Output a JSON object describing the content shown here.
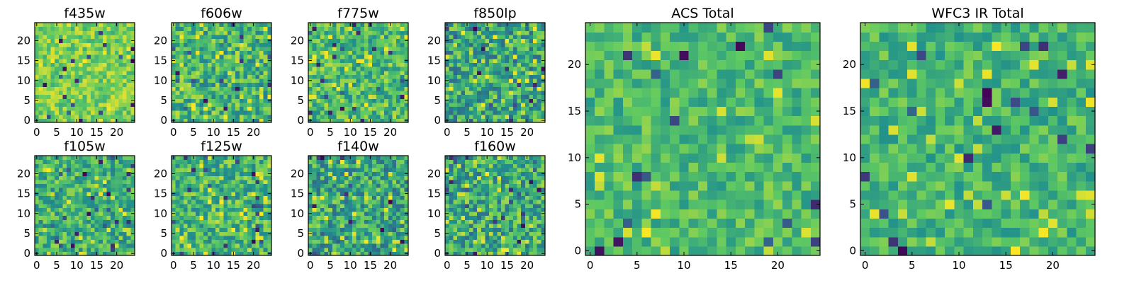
{
  "figure": {
    "colormap": "viridis",
    "colormap_stops": [
      "#440154",
      "#3b528b",
      "#21918c",
      "#5ec962",
      "#fde725"
    ]
  },
  "chart_data": [
    {
      "type": "heatmap",
      "title": "f435w",
      "size": 25,
      "xlim": [
        -0.5,
        24.5
      ],
      "ylim": [
        -0.5,
        24.5
      ],
      "xticks": [
        0,
        5,
        10,
        15,
        20
      ],
      "yticks": [
        0,
        5,
        10,
        15,
        20
      ],
      "origin": "lower",
      "mean_level": 0.78,
      "spread": 0.16,
      "seed": 11
    },
    {
      "type": "heatmap",
      "title": "f606w",
      "size": 25,
      "xlim": [
        -0.5,
        24.5
      ],
      "ylim": [
        -0.5,
        24.5
      ],
      "xticks": [
        0,
        5,
        10,
        15,
        20
      ],
      "yticks": [
        0,
        5,
        10,
        15,
        20
      ],
      "origin": "lower",
      "mean_level": 0.66,
      "spread": 0.24,
      "seed": 23
    },
    {
      "type": "heatmap",
      "title": "f775w",
      "size": 25,
      "xlim": [
        -0.5,
        24.5
      ],
      "ylim": [
        -0.5,
        24.5
      ],
      "xticks": [
        0,
        5,
        10,
        15,
        20
      ],
      "yticks": [
        0,
        5,
        10,
        15,
        20
      ],
      "origin": "lower",
      "mean_level": 0.68,
      "spread": 0.22,
      "seed": 37
    },
    {
      "type": "heatmap",
      "title": "f850lp",
      "size": 25,
      "xlim": [
        -0.5,
        24.5
      ],
      "ylim": [
        -0.5,
        24.5
      ],
      "xticks": [
        0,
        5,
        10,
        15,
        20
      ],
      "yticks": [
        0,
        5,
        10,
        15,
        20
      ],
      "origin": "lower",
      "mean_level": 0.6,
      "spread": 0.26,
      "seed": 41
    },
    {
      "type": "heatmap",
      "title": "f105w",
      "size": 25,
      "xlim": [
        -0.5,
        24.5
      ],
      "ylim": [
        -0.5,
        24.5
      ],
      "xticks": [
        0,
        5,
        10,
        15,
        20
      ],
      "yticks": [
        0,
        5,
        10,
        15,
        20
      ],
      "origin": "lower",
      "mean_level": 0.64,
      "spread": 0.22,
      "seed": 53
    },
    {
      "type": "heatmap",
      "title": "f125w",
      "size": 25,
      "xlim": [
        -0.5,
        24.5
      ],
      "ylim": [
        -0.5,
        24.5
      ],
      "xticks": [
        0,
        5,
        10,
        15,
        20
      ],
      "yticks": [
        0,
        5,
        10,
        15,
        20
      ],
      "origin": "lower",
      "mean_level": 0.66,
      "spread": 0.22,
      "seed": 67
    },
    {
      "type": "heatmap",
      "title": "f140w",
      "size": 25,
      "xlim": [
        -0.5,
        24.5
      ],
      "ylim": [
        -0.5,
        24.5
      ],
      "xticks": [
        0,
        5,
        10,
        15,
        20
      ],
      "yticks": [
        0,
        5,
        10,
        15,
        20
      ],
      "origin": "lower",
      "mean_level": 0.6,
      "spread": 0.26,
      "seed": 79
    },
    {
      "type": "heatmap",
      "title": "f160w",
      "size": 25,
      "xlim": [
        -0.5,
        24.5
      ],
      "ylim": [
        -0.5,
        24.5
      ],
      "xticks": [
        0,
        5,
        10,
        15,
        20
      ],
      "yticks": [
        0,
        5,
        10,
        15,
        20
      ],
      "origin": "lower",
      "mean_level": 0.62,
      "spread": 0.26,
      "seed": 83
    },
    {
      "type": "heatmap",
      "title": "ACS Total",
      "size": 25,
      "xlim": [
        -0.5,
        24.5
      ],
      "ylim": [
        -0.5,
        24.5
      ],
      "xticks": [
        0,
        5,
        10,
        15,
        20
      ],
      "yticks": [
        0,
        5,
        10,
        15,
        20
      ],
      "origin": "lower",
      "mean_level": 0.68,
      "spread": 0.16,
      "seed": 97
    },
    {
      "type": "heatmap",
      "title": "WFC3 IR Total",
      "size": 25,
      "xlim": [
        -0.5,
        24.5
      ],
      "ylim": [
        -0.5,
        24.5
      ],
      "xticks": [
        0,
        5,
        10,
        15,
        20
      ],
      "yticks": [
        0,
        5,
        10,
        15,
        20
      ],
      "origin": "lower",
      "mean_level": 0.66,
      "spread": 0.16,
      "seed": 101
    }
  ]
}
